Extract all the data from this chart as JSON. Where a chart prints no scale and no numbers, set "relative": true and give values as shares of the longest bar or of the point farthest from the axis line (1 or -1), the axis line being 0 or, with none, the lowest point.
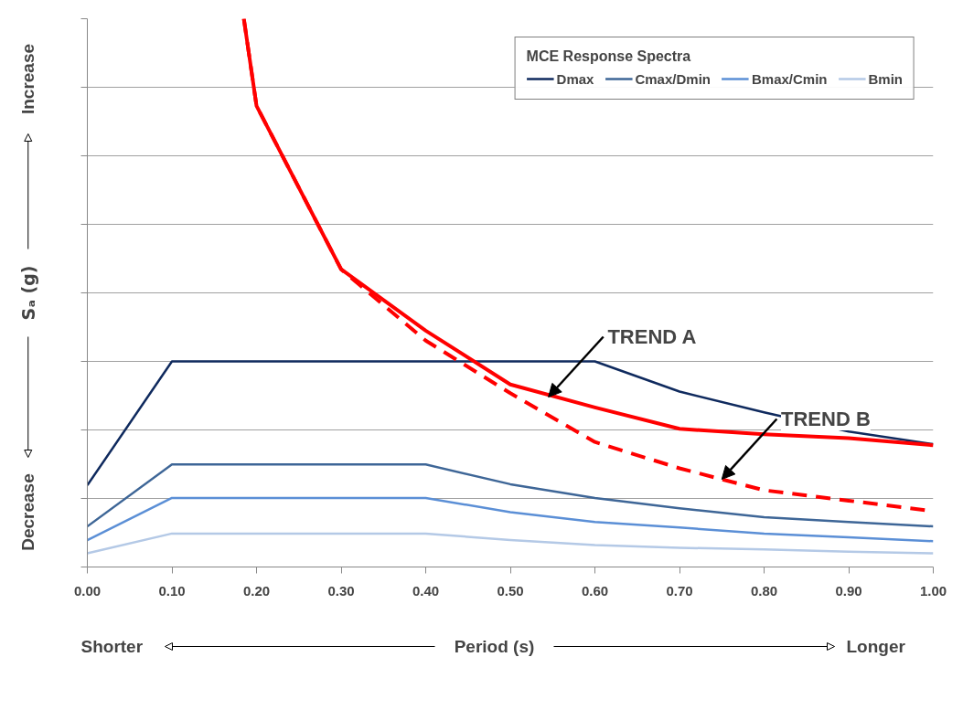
{
  "chart_data": {
    "type": "line",
    "relative": true,
    "legend_title": "MCE Response Spectra",
    "xlabel": "Period (s)",
    "ylabel": "Sₐ (g)",
    "xlim": [
      0,
      1
    ],
    "xticks": [
      {
        "value": 0,
        "label": "0.00"
      },
      {
        "value": 0.1,
        "label": "0.10"
      },
      {
        "value": 0.2,
        "label": "0.20"
      },
      {
        "value": 0.3,
        "label": "0.30"
      },
      {
        "value": 0.4,
        "label": "0.40"
      },
      {
        "value": 0.5,
        "label": "0.50"
      },
      {
        "value": 0.6,
        "label": "0.60"
      },
      {
        "value": 0.7,
        "label": "0.70"
      },
      {
        "value": 0.8,
        "label": "0.80"
      },
      {
        "value": 0.9,
        "label": "0.90"
      },
      {
        "value": 1,
        "label": "1.00"
      }
    ],
    "x": [
      0,
      0.1,
      0.2,
      0.3,
      0.4,
      0.5,
      0.6,
      0.7,
      0.8,
      0.9,
      1.0
    ],
    "grid": "y",
    "legend": "top right",
    "line_style": "solid",
    "marker": "none",
    "series": [
      {
        "name": "Dmax",
        "color": "#0f2a5e",
        "values": [
          0.149,
          0.375,
          0.375,
          0.375,
          0.375,
          0.375,
          0.375,
          0.32,
          0.282,
          0.247,
          0.224
        ]
      },
      {
        "name": "Cmax/Dmin",
        "color": "#3e6697",
        "values": [
          0.074,
          0.187,
          0.187,
          0.187,
          0.187,
          0.151,
          0.126,
          0.107,
          0.091,
          0.082,
          0.074
        ]
      },
      {
        "name": "Bmax/Cmin",
        "color": "#5b8fd6",
        "values": [
          0.049,
          0.126,
          0.126,
          0.126,
          0.126,
          0.1,
          0.082,
          0.072,
          0.061,
          0.054,
          0.047
        ]
      },
      {
        "name": "Bmin",
        "color": "#b4c9e6",
        "values": [
          0.025,
          0.061,
          0.061,
          0.061,
          0.061,
          0.049,
          0.04,
          0.035,
          0.032,
          0.028,
          0.025
        ]
      },
      {
        "color": "#ff0000",
        "x": [
          0.185,
          0.2,
          0.3,
          0.4,
          0.5,
          0.6,
          0.7,
          0.8,
          0.9,
          1.0
        ],
        "values": [
          1.0,
          0.841,
          0.543,
          0.431,
          0.333,
          0.291,
          0.252,
          0.242,
          0.235,
          0.222
        ]
      },
      {
        "color": "#ff0000",
        "line_style": "dashed",
        "x": [
          0.185,
          0.2,
          0.3,
          0.4,
          0.5,
          0.6,
          0.7,
          0.8,
          0.9,
          1.0
        ],
        "values": [
          1.0,
          0.841,
          0.543,
          0.413,
          0.317,
          0.228,
          0.18,
          0.14,
          0.121,
          0.102
        ]
      }
    ],
    "annotations": [
      {
        "text": "TREND A",
        "x": 0.545,
        "y": 0.31
      },
      {
        "text": "TREND B",
        "x": 0.75,
        "y": 0.16
      },
      "Increase",
      "Decrease",
      "Shorter",
      "Longer"
    ]
  }
}
